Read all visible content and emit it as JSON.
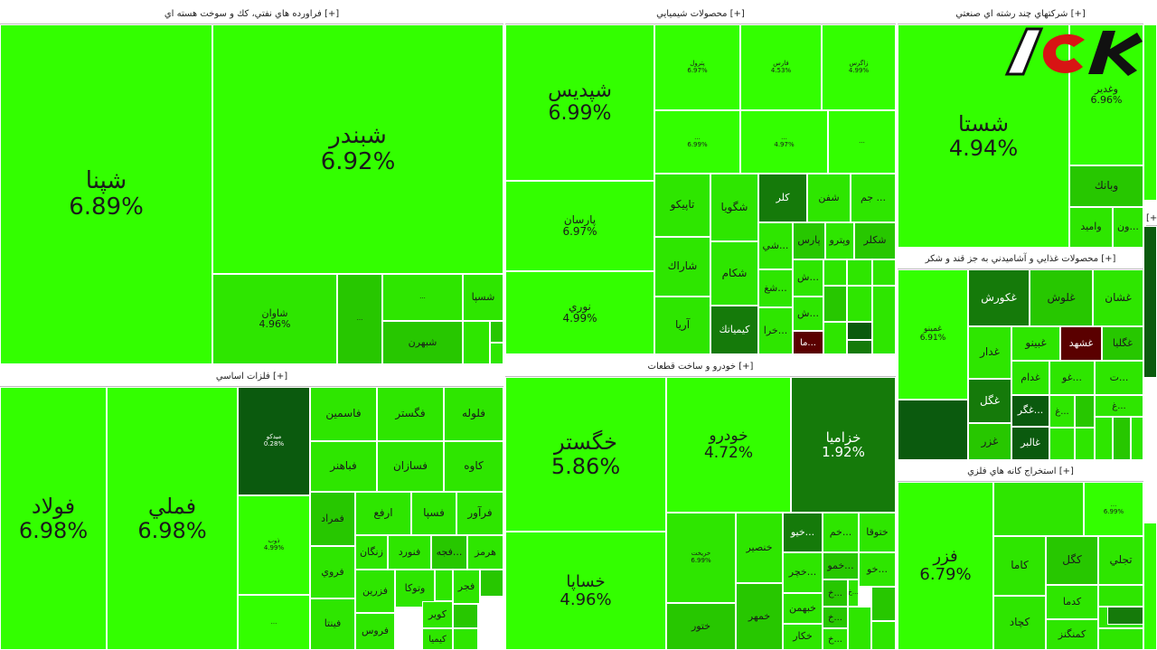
{
  "chart_data": {
    "type": "heatmap",
    "subtype": "treemap",
    "colors": {
      "limit_up": "#33ff00",
      "high": "#2ee600",
      "medium": "#27c700",
      "low": "#1f9a05",
      "lower": "#157a0a",
      "lowest": "#0b5a0e",
      "negative": "#5a0000",
      "header_bg": "#ffffff"
    },
    "sectors": [
      {
        "name": "فراورده هاي نفتي، كك و سوخت هسته اي [+]",
        "tiles": [
          {
            "symbol": "شپنا",
            "change": "6.89%",
            "shade": "limit_up"
          },
          {
            "symbol": "شبندر",
            "change": "6.92%",
            "shade": "limit_up"
          },
          {
            "symbol": "شاوان",
            "change": "4.96%",
            "shade": "high"
          },
          {
            "symbol": "...",
            "change": "",
            "shade": "medium"
          },
          {
            "symbol": "...",
            "change": "",
            "shade": "high"
          },
          {
            "symbol": "شسپا",
            "change": "",
            "shade": "high"
          },
          {
            "symbol": "شبهرن",
            "change": "",
            "shade": "medium"
          },
          {
            "symbol": "",
            "change": "",
            "shade": "high"
          },
          {
            "symbol": "",
            "change": "",
            "shade": "medium"
          },
          {
            "symbol": "",
            "change": "",
            "shade": "high"
          }
        ]
      },
      {
        "name": "محصولات شيميايي [+]",
        "tiles": [
          {
            "symbol": "شپديس",
            "change": "6.99%",
            "shade": "limit_up"
          },
          {
            "symbol": "پارسان",
            "change": "6.97%",
            "shade": "limit_up"
          },
          {
            "symbol": "نوري",
            "change": "4.99%",
            "shade": "limit_up"
          },
          {
            "symbol": "پترول",
            "change": "6.97%",
            "shade": "limit_up"
          },
          {
            "symbol": "فارس",
            "change": "4.53%",
            "shade": "limit_up"
          },
          {
            "symbol": "زاگرس",
            "change": "4.99%",
            "shade": "limit_up"
          },
          {
            "symbol": "...",
            "change": "6.99%",
            "shade": "limit_up"
          },
          {
            "symbol": "...",
            "change": "4.97%",
            "shade": "limit_up"
          },
          {
            "symbol": "...",
            "change": "",
            "shade": "limit_up"
          },
          {
            "symbol": "تاپيكو",
            "change": "",
            "shade": "high"
          },
          {
            "symbol": "شگويا",
            "change": "",
            "shade": "high"
          },
          {
            "symbol": "كلر",
            "change": "",
            "shade": "lower"
          },
          {
            "symbol": "شفن",
            "change": "",
            "shade": "high"
          },
          {
            "symbol": "جم ...",
            "change": "",
            "shade": "high"
          },
          {
            "symbol": "شاراك",
            "change": "",
            "shade": "high"
          },
          {
            "symbol": "شكام",
            "change": "",
            "shade": "high"
          },
          {
            "symbol": "شي...",
            "change": "",
            "shade": "high"
          },
          {
            "symbol": "پارس",
            "change": "",
            "shade": "medium"
          },
          {
            "symbol": "وپترو",
            "change": "",
            "shade": "high"
          },
          {
            "symbol": "شكلر",
            "change": "",
            "shade": "medium"
          },
          {
            "symbol": "آريا",
            "change": "",
            "shade": "high"
          },
          {
            "symbol": "كيمياتك",
            "change": "",
            "shade": "lower"
          },
          {
            "symbol": "شغ...",
            "change": "",
            "shade": "high"
          },
          {
            "symbol": "ش...",
            "change": "",
            "shade": "high"
          },
          {
            "symbol": "ش...",
            "change": "",
            "shade": "high"
          },
          {
            "symbol": "خرا...",
            "change": "",
            "shade": "high"
          },
          {
            "symbol": "ما...",
            "change": "",
            "shade": "negative"
          },
          {
            "symbol": "",
            "change": "",
            "shade": "high"
          },
          {
            "symbol": "",
            "change": "",
            "shade": "high"
          },
          {
            "symbol": "",
            "change": "",
            "shade": "high"
          },
          {
            "symbol": "",
            "change": "",
            "shade": "medium"
          },
          {
            "symbol": "",
            "change": "",
            "shade": "high"
          },
          {
            "symbol": "",
            "change": "",
            "shade": "lowest"
          },
          {
            "symbol": "",
            "change": "",
            "shade": "high"
          },
          {
            "symbol": "",
            "change": "",
            "shade": "high"
          },
          {
            "symbol": "",
            "change": "",
            "shade": "lower"
          }
        ]
      },
      {
        "name": "شركتهاي چند رشته اي صنعتي [+]",
        "tiles": [
          {
            "symbol": "شستا",
            "change": "4.94%",
            "shade": "limit_up"
          },
          {
            "symbol": "وغدير",
            "change": "6.96%",
            "shade": "limit_up"
          },
          {
            "symbol": "وبانك",
            "change": "",
            "shade": "medium"
          },
          {
            "symbol": "واميد",
            "change": "",
            "shade": "high"
          },
          {
            "symbol": "ون...",
            "change": "",
            "shade": "high"
          },
          {
            "symbol": "",
            "change": "",
            "shade": "medium"
          }
        ]
      },
      {
        "name": "محصولات غذايي و آشاميدني به جز قند و شكر [+]",
        "tiles": [
          {
            "symbol": "غمينو",
            "change": "6.91%",
            "shade": "limit_up"
          },
          {
            "symbol": "",
            "change": "",
            "shade": "lowest"
          },
          {
            "symbol": "غكورش",
            "change": "",
            "shade": "lower"
          },
          {
            "symbol": "غلوش",
            "change": "",
            "shade": "medium"
          },
          {
            "symbol": "غشان",
            "change": "",
            "shade": "high"
          },
          {
            "symbol": "غدار",
            "change": "",
            "shade": "high"
          },
          {
            "symbol": "غبينو",
            "change": "",
            "shade": "high"
          },
          {
            "symbol": "غشهد",
            "change": "",
            "shade": "negative"
          },
          {
            "symbol": "غگليا",
            "change": "",
            "shade": "medium"
          },
          {
            "symbol": "غدام",
            "change": "",
            "shade": "high"
          },
          {
            "symbol": "غو...",
            "change": "",
            "shade": "high"
          },
          {
            "symbol": "ت...",
            "change": "",
            "shade": "high"
          },
          {
            "symbol": "غگل",
            "change": "",
            "shade": "lower"
          },
          {
            "symbol": "غگر...",
            "change": "",
            "shade": "lowest"
          },
          {
            "symbol": "غ...",
            "change": "",
            "shade": "high"
          },
          {
            "symbol": "غ...",
            "change": "",
            "shade": "high"
          },
          {
            "symbol": "غزر",
            "change": "",
            "shade": "medium"
          },
          {
            "symbol": "غالبر",
            "change": "",
            "shade": "lowest"
          },
          {
            "symbol": "",
            "change": "",
            "shade": "high"
          },
          {
            "symbol": "",
            "change": "",
            "shade": "medium"
          },
          {
            "symbol": "",
            "change": "",
            "shade": "high"
          },
          {
            "symbol": "",
            "change": "",
            "shade": "high"
          },
          {
            "symbol": "",
            "change": "",
            "shade": "medium"
          },
          {
            "symbol": "",
            "change": "",
            "shade": "high"
          }
        ]
      },
      {
        "name": "فلزات اساسي [+]",
        "tiles": [
          {
            "symbol": "فولاد",
            "change": "6.98%",
            "shade": "limit_up"
          },
          {
            "symbol": "فملي",
            "change": "6.98%",
            "shade": "limit_up"
          },
          {
            "symbol": "ميدكو",
            "change": "0.28%",
            "shade": "lowest"
          },
          {
            "symbol": "ذوب",
            "change": "4.99%",
            "shade": "limit_up"
          },
          {
            "symbol": "...",
            "change": "",
            "shade": "limit_up"
          },
          {
            "symbol": "فاسمين",
            "change": "",
            "shade": "high"
          },
          {
            "symbol": "فگستر",
            "change": "",
            "shade": "high"
          },
          {
            "symbol": "فلوله",
            "change": "",
            "shade": "high"
          },
          {
            "symbol": "فباهنر",
            "change": "",
            "shade": "high"
          },
          {
            "symbol": "فسازان",
            "change": "",
            "shade": "high"
          },
          {
            "symbol": "كاوه",
            "change": "",
            "shade": "high"
          },
          {
            "symbol": "فمراد",
            "change": "",
            "shade": "medium"
          },
          {
            "symbol": "ارفع",
            "change": "",
            "shade": "high"
          },
          {
            "symbol": "فسپا",
            "change": "",
            "shade": "high"
          },
          {
            "symbol": "فرآور",
            "change": "",
            "shade": "high"
          },
          {
            "symbol": "زنگان",
            "change": "",
            "shade": "high"
          },
          {
            "symbol": "فنورد",
            "change": "",
            "shade": "high"
          },
          {
            "symbol": "فجه...",
            "change": "",
            "shade": "medium"
          },
          {
            "symbol": "هرمز",
            "change": "",
            "shade": "high"
          },
          {
            "symbol": "فروي",
            "change": "",
            "shade": "high"
          },
          {
            "symbol": "فزرين",
            "change": "",
            "shade": "high"
          },
          {
            "symbol": "وتوكا",
            "change": "",
            "shade": "high"
          },
          {
            "symbol": "فجر",
            "change": "",
            "shade": "high"
          },
          {
            "symbol": "فينتا",
            "change": "",
            "shade": "high"
          },
          {
            "symbol": "فروس",
            "change": "",
            "shade": "high"
          },
          {
            "symbol": "كوير",
            "change": "",
            "shade": "high"
          },
          {
            "symbol": "كيميا",
            "change": "",
            "shade": "high"
          },
          {
            "symbol": "",
            "change": "",
            "shade": "medium"
          },
          {
            "symbol": "",
            "change": "",
            "shade": "high"
          },
          {
            "symbol": "",
            "change": "",
            "shade": "medium"
          },
          {
            "symbol": "",
            "change": "",
            "shade": "high"
          }
        ]
      },
      {
        "name": "خودرو و ساخت قطعات [+]",
        "tiles": [
          {
            "symbol": "خگستر",
            "change": "5.86%",
            "shade": "limit_up"
          },
          {
            "symbol": "خساپا",
            "change": "4.96%",
            "shade": "limit_up"
          },
          {
            "symbol": "خودرو",
            "change": "4.72%",
            "shade": "limit_up"
          },
          {
            "symbol": "خزاميا",
            "change": "1.92%",
            "shade": "lower"
          },
          {
            "symbol": "خريخت",
            "change": "6.99%",
            "shade": "high"
          },
          {
            "symbol": "خنصير",
            "change": "",
            "shade": "high"
          },
          {
            "symbol": "خيو...",
            "change": "",
            "shade": "lower"
          },
          {
            "symbol": "خم...",
            "change": "",
            "shade": "high"
          },
          {
            "symbol": "ختوقا",
            "change": "",
            "shade": "high"
          },
          {
            "symbol": "خچر...",
            "change": "",
            "shade": "high"
          },
          {
            "symbol": "خمو...",
            "change": "",
            "shade": "medium"
          },
          {
            "symbol": "خو...",
            "change": "",
            "shade": "high"
          },
          {
            "symbol": "خ...",
            "change": "",
            "shade": "medium"
          },
          {
            "symbol": "خ...",
            "change": "",
            "shade": "high"
          },
          {
            "symbol": "ختور",
            "change": "",
            "shade": "medium"
          },
          {
            "symbol": "خمهر",
            "change": "",
            "shade": "medium"
          },
          {
            "symbol": "خبهمن",
            "change": "",
            "shade": "high"
          },
          {
            "symbol": "خ...",
            "change": "",
            "shade": "medium"
          },
          {
            "symbol": "خكار",
            "change": "",
            "shade": "high"
          },
          {
            "symbol": "خ...",
            "change": "",
            "shade": "high"
          },
          {
            "symbol": "",
            "change": "",
            "shade": "high"
          },
          {
            "symbol": "",
            "change": "",
            "shade": "medium"
          },
          {
            "symbol": "",
            "change": "",
            "shade": "high"
          }
        ]
      },
      {
        "name": "استخراج كانه هاي فلزي [+]",
        "tiles": [
          {
            "symbol": "فزر",
            "change": "6.79%",
            "shade": "limit_up"
          },
          {
            "symbol": "...",
            "change": "6.99%",
            "shade": "limit_up"
          },
          {
            "symbol": "كاما",
            "change": "",
            "shade": "high"
          },
          {
            "symbol": "كگل",
            "change": "",
            "shade": "medium"
          },
          {
            "symbol": "تجلي",
            "change": "",
            "shade": "high"
          },
          {
            "symbol": "كدما",
            "change": "",
            "shade": "high"
          },
          {
            "symbol": "كچاد",
            "change": "",
            "shade": "high"
          },
          {
            "symbol": "كمنگنز",
            "change": "",
            "shade": "high"
          },
          {
            "symbol": "",
            "change": "",
            "shade": "high"
          },
          {
            "symbol": "",
            "change": "",
            "shade": "high"
          },
          {
            "symbol": "",
            "change": "",
            "shade": "high"
          },
          {
            "symbol": "",
            "change": "",
            "shade": "lower"
          },
          {
            "symbol": "",
            "change": "",
            "shade": "high"
          }
        ]
      },
      {
        "name": "[+",
        "tiles": [
          {
            "symbol": "",
            "change": "",
            "shade": "limit_up"
          },
          {
            "symbol": "",
            "change": "",
            "shade": "lowest"
          },
          {
            "symbol": "",
            "change": "",
            "shade": "limit_up"
          }
        ]
      }
    ]
  }
}
